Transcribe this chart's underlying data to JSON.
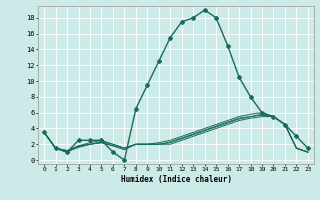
{
  "xlabel": "Humidex (Indice chaleur)",
  "background_color": "#cceae7",
  "grid_color": "#ffffff",
  "line_color": "#1a6b5a",
  "x_ticks": [
    0,
    1,
    2,
    3,
    4,
    5,
    6,
    7,
    8,
    9,
    10,
    11,
    12,
    13,
    14,
    15,
    16,
    17,
    18,
    19,
    20,
    21,
    22,
    23
  ],
  "y_ticks": [
    0,
    2,
    4,
    6,
    8,
    10,
    12,
    14,
    16,
    18
  ],
  "xlim": [
    -0.5,
    23.5
  ],
  "ylim": [
    -0.5,
    19.5
  ],
  "main_line": {
    "x": [
      0,
      1,
      2,
      3,
      4,
      5,
      6,
      7,
      8,
      9,
      10,
      11,
      12,
      13,
      14,
      15,
      16,
      17,
      18,
      19,
      20,
      21,
      22,
      23
    ],
    "y": [
      3.5,
      1.5,
      1.0,
      2.5,
      2.5,
      2.5,
      1.0,
      0.0,
      6.5,
      9.5,
      12.5,
      15.5,
      17.5,
      18.0,
      19.0,
      18.0,
      14.5,
      10.5,
      8.0,
      6.0,
      5.5,
      4.5,
      3.0,
      1.5
    ]
  },
  "extra_lines": [
    {
      "x": [
        0,
        1,
        2,
        3,
        4,
        5,
        6,
        7,
        8,
        9,
        10,
        11,
        12,
        13,
        14,
        15,
        16,
        17,
        18,
        19,
        20,
        21,
        22,
        23
      ],
      "y": [
        3.5,
        1.5,
        1.2,
        1.8,
        2.2,
        2.5,
        2.0,
        1.5,
        2.0,
        2.0,
        2.2,
        2.5,
        3.0,
        3.5,
        4.0,
        4.5,
        5.0,
        5.5,
        5.8,
        6.0,
        5.5,
        4.5,
        1.5,
        1.0
      ]
    },
    {
      "x": [
        0,
        1,
        2,
        3,
        4,
        5,
        6,
        7,
        8,
        9,
        10,
        11,
        12,
        13,
        14,
        15,
        16,
        17,
        18,
        19,
        20,
        21,
        22,
        23
      ],
      "y": [
        3.5,
        1.5,
        1.0,
        1.8,
        2.0,
        2.2,
        1.8,
        1.5,
        2.0,
        2.0,
        2.0,
        2.3,
        2.8,
        3.3,
        3.8,
        4.3,
        4.8,
        5.3,
        5.5,
        5.8,
        5.5,
        4.5,
        1.5,
        1.0
      ]
    },
    {
      "x": [
        0,
        1,
        2,
        3,
        4,
        5,
        6,
        7,
        8,
        9,
        10,
        11,
        12,
        13,
        14,
        15,
        16,
        17,
        18,
        19,
        20,
        21,
        22,
        23
      ],
      "y": [
        3.5,
        1.5,
        1.0,
        1.7,
        2.0,
        2.2,
        1.8,
        1.3,
        2.0,
        2.0,
        2.0,
        2.2,
        2.7,
        3.2,
        3.7,
        4.2,
        4.7,
        5.2,
        5.5,
        5.7,
        5.5,
        4.5,
        1.5,
        1.0
      ]
    },
    {
      "x": [
        0,
        1,
        2,
        3,
        4,
        5,
        6,
        7,
        8,
        9,
        10,
        11,
        12,
        13,
        14,
        15,
        16,
        17,
        18,
        19,
        20,
        21,
        22,
        23
      ],
      "y": [
        3.5,
        1.5,
        1.2,
        1.6,
        2.0,
        2.3,
        2.0,
        1.5,
        2.0,
        2.0,
        2.0,
        2.0,
        2.5,
        3.0,
        3.5,
        4.0,
        4.5,
        5.0,
        5.3,
        5.5,
        5.5,
        4.5,
        1.5,
        1.0
      ]
    }
  ]
}
